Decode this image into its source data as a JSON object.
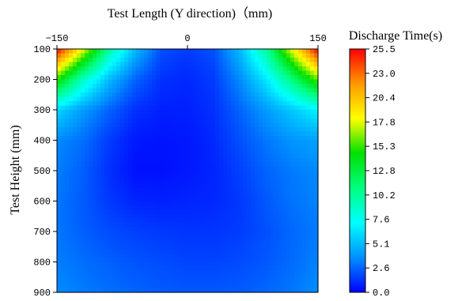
{
  "chart_data": {
    "type": "heatmap",
    "subtype": "filled-contour",
    "xlabel": "Test Length (Y direction)（mm)",
    "ylabel": "Test Height (mm)",
    "legend_title": "Discharge Time(s)",
    "x_axis": {
      "range": [
        -150,
        150
      ],
      "ticks": [
        -150,
        0,
        150
      ],
      "position": "top"
    },
    "y_axis": {
      "range": [
        100,
        900
      ],
      "ticks": [
        100,
        200,
        300,
        400,
        500,
        600,
        700,
        800,
        900
      ],
      "inverted": true
    },
    "colorbar": {
      "range": [
        0.0,
        25.5
      ],
      "ticks": [
        "25.5",
        "23.0",
        "20.4",
        "17.8",
        "15.3",
        "12.8",
        "10.2",
        "7.6",
        "5.1",
        "2.6",
        "0.0"
      ],
      "colormap": [
        "#0000ff",
        "#0090ff",
        "#00ffff",
        "#00ff80",
        "#00e000",
        "#ffff00",
        "#ff9900",
        "#ff0000"
      ]
    },
    "x": [
      -150,
      -120,
      -90,
      -60,
      -30,
      0,
      30,
      60,
      90,
      120,
      150
    ],
    "y": [
      100,
      200,
      300,
      400,
      500,
      600,
      700,
      800,
      900
    ],
    "z": [
      [
        25.5,
        18.0,
        10.0,
        5.0,
        2.0,
        1.5,
        2.0,
        5.0,
        10.0,
        18.0,
        25.5
      ],
      [
        15.0,
        9.0,
        5.0,
        2.5,
        1.2,
        1.0,
        1.5,
        3.5,
        6.5,
        11.0,
        16.0
      ],
      [
        6.0,
        4.0,
        2.5,
        1.2,
        0.8,
        0.8,
        1.2,
        2.5,
        4.0,
        5.5,
        7.0
      ],
      [
        3.5,
        2.8,
        1.5,
        0.6,
        0.5,
        0.6,
        1.0,
        2.0,
        3.0,
        3.8,
        4.2
      ],
      [
        3.2,
        2.4,
        1.2,
        0.4,
        0.4,
        0.6,
        0.9,
        1.6,
        2.5,
        3.1,
        3.5
      ],
      [
        3.0,
        2.3,
        1.4,
        0.9,
        0.8,
        0.9,
        1.0,
        1.4,
        2.2,
        2.9,
        3.3
      ],
      [
        3.0,
        2.4,
        1.9,
        1.6,
        1.4,
        1.3,
        1.3,
        1.5,
        2.0,
        2.6,
        3.1
      ],
      [
        3.2,
        2.8,
        2.4,
        2.1,
        1.9,
        1.7,
        1.7,
        1.9,
        2.2,
        2.7,
        3.3
      ],
      [
        3.5,
        3.1,
        2.8,
        2.5,
        2.3,
        2.2,
        2.2,
        2.3,
        2.6,
        3.0,
        3.6
      ]
    ]
  }
}
